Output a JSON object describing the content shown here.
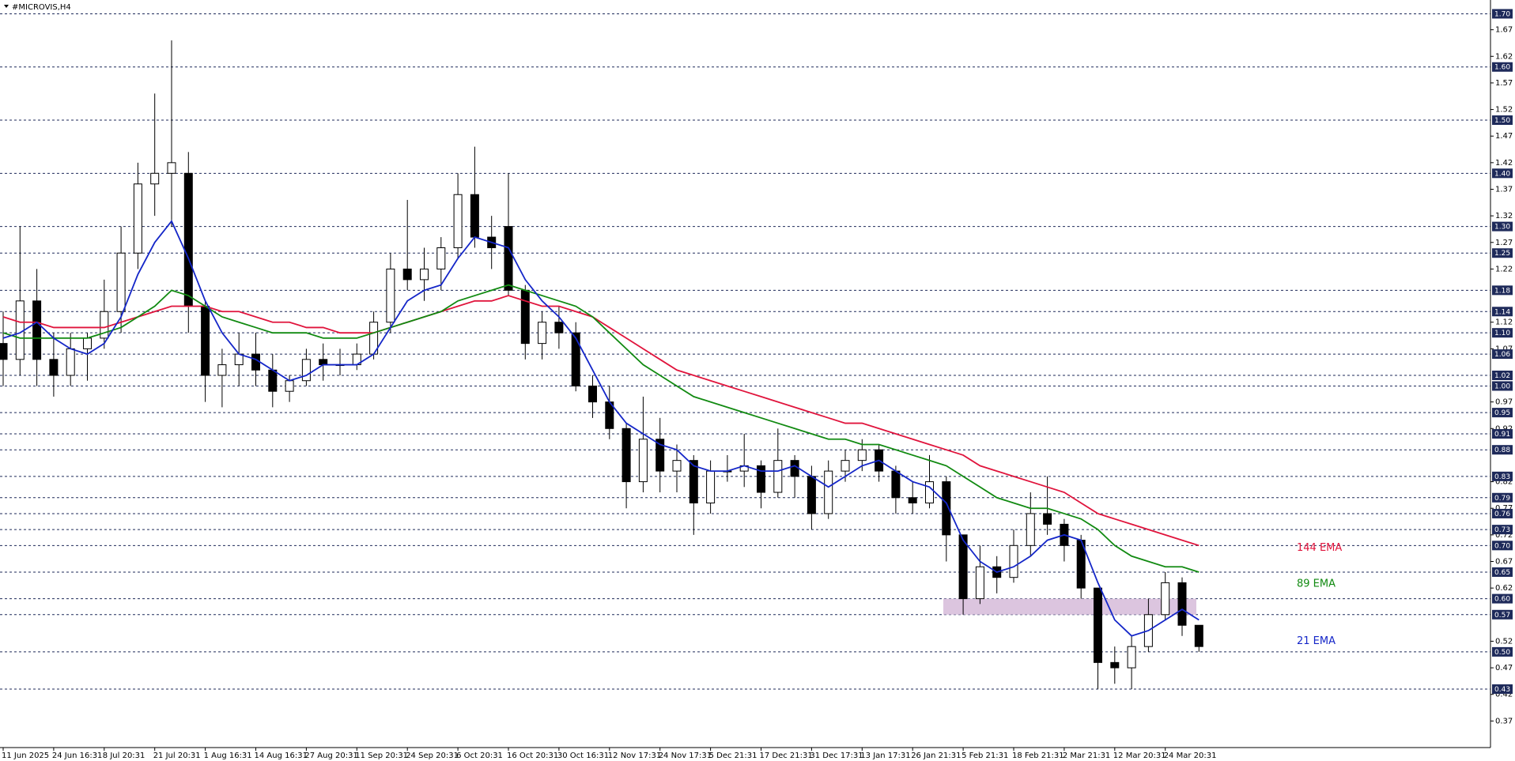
{
  "chart_data": {
    "type": "candlestick",
    "title": "#MICROVIS,H4",
    "categories": [
      "11 Jun 2025",
      null,
      null,
      "24 Jun 16:31",
      null,
      null,
      "8 Jul 20:31",
      null,
      null,
      "21 Jul 20:31",
      null,
      null,
      "1 Aug 16:31",
      null,
      null,
      "14 Aug 16:31",
      null,
      null,
      "27 Aug 20:31",
      null,
      null,
      "11 Sep 20:31",
      null,
      null,
      "24 Sep 20:31",
      null,
      null,
      "6 Oct 20:31",
      null,
      null,
      "16 Oct 20:31",
      null,
      null,
      "30 Oct 16:31",
      null,
      null,
      "12 Nov 17:31",
      null,
      null,
      "24 Nov 17:31",
      null,
      null,
      "5 Dec 21:31",
      null,
      null,
      "17 Dec 21:31",
      null,
      null,
      "31 Dec 17:31",
      null,
      null,
      "13 Jan 17:31",
      null,
      null,
      "26 Jan 21:31",
      null,
      null,
      "5 Feb 21:31",
      null,
      null,
      "18 Feb 21:31",
      null,
      null,
      "2 Mar 21:31",
      null,
      null,
      "12 Mar 20:31",
      null,
      null,
      "24 Mar 20:31",
      null,
      null
    ],
    "open": [
      1.08,
      1.05,
      1.16,
      1.05,
      1.02,
      1.07,
      1.09,
      1.14,
      1.25,
      1.38,
      1.4,
      1.4,
      1.15,
      1.02,
      1.04,
      1.06,
      1.03,
      0.99,
      1.01,
      1.05,
      1.04,
      1.04,
      1.06,
      1.12,
      1.22,
      1.2,
      1.22,
      1.26,
      1.36,
      1.28,
      1.3,
      1.18,
      1.08,
      1.12,
      1.1,
      1.0,
      0.97,
      0.92,
      0.82,
      0.9,
      0.84,
      0.86,
      0.78,
      0.84,
      0.84,
      0.85,
      0.8,
      0.86,
      0.83,
      0.76,
      0.84,
      0.86,
      0.88,
      0.84,
      0.79,
      0.78,
      0.82,
      0.72,
      0.6,
      0.66,
      0.64,
      0.7,
      0.76,
      0.74,
      0.71,
      0.62,
      0.48,
      0.47,
      0.51,
      0.57,
      0.63,
      0.55
    ],
    "high": [
      1.14,
      1.3,
      1.22,
      1.1,
      1.1,
      1.1,
      1.2,
      1.3,
      1.42,
      1.55,
      1.65,
      1.44,
      1.16,
      1.07,
      1.1,
      1.1,
      1.06,
      1.02,
      1.07,
      1.08,
      1.07,
      1.08,
      1.14,
      1.25,
      1.35,
      1.26,
      1.28,
      1.4,
      1.45,
      1.32,
      1.4,
      1.19,
      1.14,
      1.15,
      1.12,
      1.02,
      1.0,
      0.93,
      0.98,
      0.94,
      0.89,
      0.87,
      0.86,
      0.87,
      0.91,
      0.86,
      0.92,
      0.87,
      0.85,
      0.86,
      0.88,
      0.9,
      0.89,
      0.85,
      0.82,
      0.87,
      0.83,
      0.72,
      0.7,
      0.68,
      0.73,
      0.8,
      0.83,
      0.75,
      0.72,
      0.62,
      0.51,
      0.53,
      0.6,
      0.65,
      0.64,
      0.55
    ],
    "low": [
      1.0,
      1.02,
      1.0,
      0.98,
      1.0,
      1.01,
      1.07,
      1.1,
      1.22,
      1.32,
      1.3,
      1.1,
      0.97,
      0.96,
      1.0,
      1.0,
      0.96,
      0.97,
      1.0,
      1.01,
      1.02,
      1.03,
      1.05,
      1.1,
      1.18,
      1.16,
      1.18,
      1.24,
      1.26,
      1.22,
      1.17,
      1.05,
      1.05,
      1.07,
      0.99,
      0.94,
      0.9,
      0.77,
      0.8,
      0.8,
      0.8,
      0.72,
      0.76,
      0.82,
      0.81,
      0.77,
      0.79,
      0.79,
      0.73,
      0.75,
      0.82,
      0.84,
      0.82,
      0.76,
      0.76,
      0.77,
      0.67,
      0.57,
      0.59,
      0.61,
      0.63,
      0.68,
      0.72,
      0.67,
      0.6,
      0.43,
      0.44,
      0.43,
      0.5,
      0.56,
      0.53,
      0.5
    ],
    "close": [
      1.05,
      1.16,
      1.05,
      1.02,
      1.07,
      1.09,
      1.14,
      1.25,
      1.38,
      1.4,
      1.42,
      1.15,
      1.02,
      1.04,
      1.06,
      1.03,
      0.99,
      1.01,
      1.05,
      1.04,
      1.04,
      1.06,
      1.12,
      1.22,
      1.2,
      1.22,
      1.26,
      1.36,
      1.28,
      1.26,
      1.18,
      1.08,
      1.12,
      1.1,
      1.0,
      0.97,
      0.92,
      0.82,
      0.9,
      0.84,
      0.86,
      0.78,
      0.84,
      0.84,
      0.85,
      0.8,
      0.86,
      0.83,
      0.76,
      0.84,
      0.86,
      0.88,
      0.84,
      0.79,
      0.78,
      0.82,
      0.72,
      0.6,
      0.66,
      0.64,
      0.7,
      0.76,
      0.74,
      0.7,
      0.62,
      0.48,
      0.47,
      0.51,
      0.57,
      0.63,
      0.55,
      0.51
    ],
    "candle_color": "#000000",
    "series": [
      {
        "name": "144 EMA",
        "color": "#e0143c",
        "values": [
          1.13,
          1.12,
          1.12,
          1.11,
          1.11,
          1.11,
          1.11,
          1.12,
          1.13,
          1.14,
          1.15,
          1.15,
          1.15,
          1.14,
          1.14,
          1.13,
          1.12,
          1.12,
          1.11,
          1.11,
          1.1,
          1.1,
          1.1,
          1.11,
          1.12,
          1.13,
          1.14,
          1.15,
          1.16,
          1.16,
          1.17,
          1.16,
          1.15,
          1.15,
          1.14,
          1.13,
          1.11,
          1.09,
          1.07,
          1.05,
          1.03,
          1.02,
          1.01,
          1.0,
          0.99,
          0.98,
          0.97,
          0.96,
          0.95,
          0.94,
          0.93,
          0.93,
          0.92,
          0.91,
          0.9,
          0.89,
          0.88,
          0.87,
          0.85,
          0.84,
          0.83,
          0.82,
          0.81,
          0.8,
          0.78,
          0.76,
          0.75,
          0.74,
          0.73,
          0.72,
          0.71,
          0.7
        ]
      },
      {
        "name": "89 EMA",
        "color": "#118a11",
        "values": [
          1.1,
          1.09,
          1.09,
          1.09,
          1.09,
          1.09,
          1.1,
          1.11,
          1.13,
          1.15,
          1.18,
          1.17,
          1.15,
          1.13,
          1.12,
          1.11,
          1.1,
          1.1,
          1.1,
          1.09,
          1.09,
          1.09,
          1.1,
          1.11,
          1.12,
          1.13,
          1.14,
          1.16,
          1.17,
          1.18,
          1.19,
          1.18,
          1.17,
          1.16,
          1.15,
          1.13,
          1.1,
          1.07,
          1.04,
          1.02,
          1.0,
          0.98,
          0.97,
          0.96,
          0.95,
          0.94,
          0.93,
          0.92,
          0.91,
          0.9,
          0.9,
          0.89,
          0.89,
          0.88,
          0.87,
          0.86,
          0.85,
          0.83,
          0.81,
          0.79,
          0.78,
          0.77,
          0.77,
          0.76,
          0.75,
          0.73,
          0.7,
          0.68,
          0.67,
          0.66,
          0.66,
          0.65
        ]
      },
      {
        "name": "21 EMA",
        "color": "#1426c8",
        "values": [
          1.09,
          1.1,
          1.12,
          1.09,
          1.07,
          1.06,
          1.08,
          1.13,
          1.21,
          1.27,
          1.31,
          1.24,
          1.16,
          1.1,
          1.06,
          1.05,
          1.03,
          1.01,
          1.02,
          1.04,
          1.04,
          1.04,
          1.06,
          1.11,
          1.16,
          1.18,
          1.19,
          1.24,
          1.28,
          1.27,
          1.26,
          1.2,
          1.16,
          1.13,
          1.09,
          1.03,
          0.97,
          0.93,
          0.91,
          0.89,
          0.88,
          0.85,
          0.84,
          0.84,
          0.85,
          0.84,
          0.84,
          0.85,
          0.83,
          0.81,
          0.83,
          0.85,
          0.86,
          0.84,
          0.82,
          0.81,
          0.78,
          0.71,
          0.67,
          0.65,
          0.66,
          0.68,
          0.71,
          0.72,
          0.71,
          0.63,
          0.56,
          0.53,
          0.54,
          0.56,
          0.58,
          0.56
        ]
      }
    ],
    "zone": {
      "low": 0.57,
      "high": 0.6,
      "color": "#d8bfdc"
    },
    "ylim": [
      0.32,
      1.72
    ],
    "yticks": [
      1.67,
      1.62,
      1.57,
      1.52,
      1.47,
      1.42,
      1.37,
      1.32,
      1.27,
      1.22,
      1.12,
      1.07,
      0.97,
      0.92,
      0.82,
      0.77,
      0.72,
      0.67,
      0.62,
      0.52,
      0.47,
      0.42,
      0.37
    ],
    "levels": [
      {
        "value": 1.7,
        "label": "1.70"
      },
      {
        "value": 1.6,
        "label": "1.60"
      },
      {
        "value": 1.5,
        "label": "1.50"
      },
      {
        "value": 1.4,
        "label": "1.40"
      },
      {
        "value": 1.3,
        "label": "1.30"
      },
      1.25,
      1.18,
      1.14,
      {
        "value": 1.1,
        "label": "1.10"
      },
      1.06,
      1.02,
      {
        "value": 1,
        "label": "1.00"
      },
      0.95,
      0.91,
      0.88,
      0.83,
      0.79,
      0.76,
      0.73,
      {
        "value": 0.7,
        "label": "0.70"
      },
      0.65,
      {
        "value": 0.6,
        "label": "0.60"
      },
      0.57,
      {
        "value": 0.5,
        "label": "0.50"
      },
      0.43
    ],
    "level_color": "#1e2a5a"
  }
}
